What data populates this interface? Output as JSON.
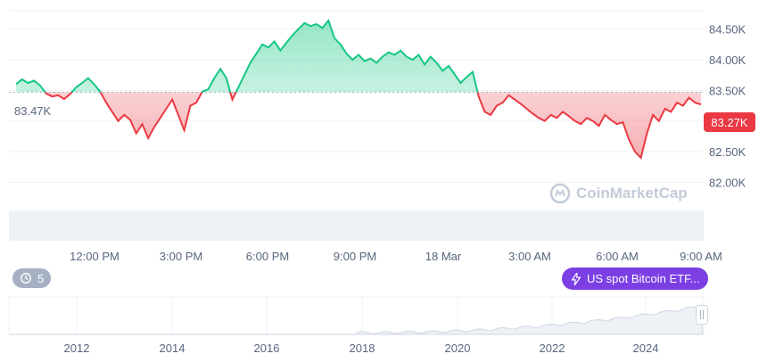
{
  "chart_data": {
    "type": "line",
    "series": [
      {
        "values": [
          83.6,
          83.68,
          83.62,
          83.66,
          83.58,
          83.45,
          83.4,
          83.42,
          83.36,
          83.44,
          83.55,
          83.62,
          83.7,
          83.6,
          83.48,
          83.3,
          83.15,
          83.0,
          83.1,
          83.02,
          82.8,
          82.95,
          82.72,
          82.9,
          83.05,
          83.2,
          83.35,
          83.1,
          82.85,
          83.25,
          83.3,
          83.48,
          83.52,
          83.7,
          83.85,
          83.7,
          83.35,
          83.55,
          83.75,
          83.95,
          84.1,
          84.25,
          84.2,
          84.3,
          84.15,
          84.28,
          84.4,
          84.5,
          84.6,
          84.55,
          84.58,
          84.52,
          84.64,
          84.35,
          84.25,
          84.1,
          84.0,
          84.08,
          83.98,
          84.02,
          83.95,
          84.05,
          84.12,
          84.08,
          84.15,
          84.05,
          84.0,
          84.08,
          83.92,
          84.05,
          83.95,
          83.82,
          83.9,
          83.76,
          83.62,
          83.72,
          83.8,
          83.4,
          83.15,
          83.1,
          83.25,
          83.3,
          83.42,
          83.35,
          83.28,
          83.2,
          83.12,
          83.05,
          83.0,
          83.1,
          83.05,
          83.15,
          83.08,
          83.0,
          82.95,
          83.05,
          83.0,
          82.92,
          83.1,
          83.02,
          82.95,
          82.98,
          82.7,
          82.5,
          82.4,
          82.8,
          83.1,
          83.0,
          83.2,
          83.15,
          83.3,
          83.25,
          83.38,
          83.3,
          83.27
        ]
      }
    ],
    "baseline": 83.47,
    "start_label": "83.47K",
    "current_label": "83.27K",
    "y_ticks": [
      "84.50K",
      "84.00K",
      "83.50K",
      "83.00K",
      "82.50K",
      "82.00K"
    ],
    "y_tick_values": [
      84.5,
      84.0,
      83.5,
      83.0,
      82.5,
      82.0
    ],
    "ylim": [
      81.6,
      84.8
    ],
    "x_ticks": [
      "12:00 PM",
      "3:00 PM",
      "6:00 PM",
      "9:00 PM",
      "18 Mar",
      "3:00 AM",
      "6:00 AM",
      "9:00 AM"
    ],
    "nav_years": [
      "2012",
      "2014",
      "2016",
      "2018",
      "2020",
      "2022",
      "2024"
    ],
    "colors": {
      "up": "#16c784",
      "down": "#ea3943",
      "grid": "#eff2f5",
      "axis": "#58667e",
      "pill": "#7b3fe4"
    }
  },
  "ui": {
    "history_count": "5",
    "etf_label": "US spot Bitcoin ETF...",
    "watermark": "CoinMarketCap",
    "history_icon": "history-icon",
    "etf_icon": "lightning-icon"
  }
}
